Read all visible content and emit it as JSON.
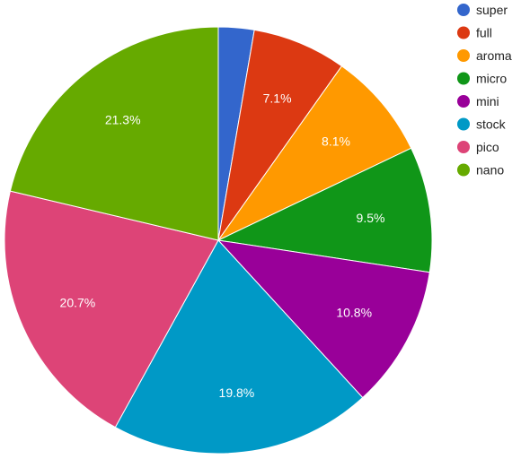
{
  "chart_data": {
    "type": "pie",
    "title": "",
    "legend_position": "right",
    "start_angle": "12 o'clock",
    "direction": "clockwise",
    "slices": [
      {
        "name": "super",
        "value": 2.7,
        "label": "",
        "color": "#3366cc"
      },
      {
        "name": "full",
        "value": 7.1,
        "label": "7.1%",
        "color": "#dc3912"
      },
      {
        "name": "aroma",
        "value": 8.1,
        "label": "8.1%",
        "color": "#ff9900"
      },
      {
        "name": "micro",
        "value": 9.5,
        "label": "9.5%",
        "color": "#109618"
      },
      {
        "name": "mini",
        "value": 10.8,
        "label": "10.8%",
        "color": "#990099"
      },
      {
        "name": "stock",
        "value": 19.8,
        "label": "19.8%",
        "color": "#0099c6"
      },
      {
        "name": "pico",
        "value": 20.7,
        "label": "20.7%",
        "color": "#dd4477"
      },
      {
        "name": "nano",
        "value": 21.3,
        "label": "21.3%",
        "color": "#66aa00"
      }
    ]
  }
}
